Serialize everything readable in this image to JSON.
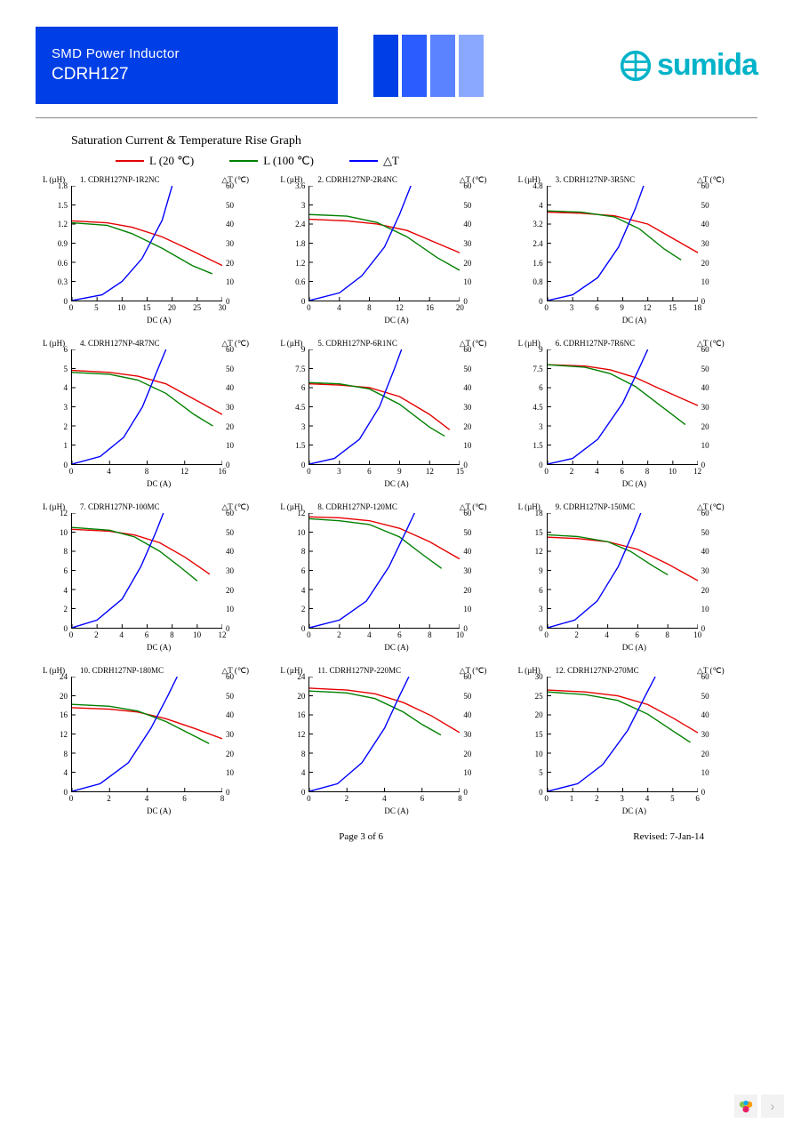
{
  "header": {
    "line1": "SMD Power Inductor",
    "line2": "CDRH127",
    "bar_colors": [
      "#003ee6",
      "#2a5cff",
      "#5b82ff",
      "#8aa8ff"
    ],
    "logo_text": "sumida",
    "logo_color": "#00b3c8"
  },
  "section_title": "Saturation Current & Temperature Rise  Graph",
  "legend": [
    {
      "color": "#e60000",
      "label": "L (20  ℃)"
    },
    {
      "color": "#008000",
      "label": "L (100  ℃)"
    },
    {
      "color": "#0000ff",
      "label": "△T"
    }
  ],
  "axes": {
    "y_left_label": "L (µH)",
    "y_right_label": "△T (℃)",
    "x_label": "DC (A)",
    "dt_ticks": [
      0,
      10,
      20,
      30,
      40,
      50,
      60
    ]
  },
  "colors": {
    "l20": "#e60000",
    "l100": "#008000",
    "dt": "#0000ff",
    "axis": "#000000",
    "tick": "#000000"
  },
  "charts": [
    {
      "n": "1",
      "title": "CDRH127NP-1R2NC",
      "l_max": 1.8,
      "l_ticks": [
        0,
        0.3,
        0.6,
        0.9,
        1.2,
        1.5,
        1.8
      ],
      "x_max": 30,
      "x_ticks": [
        0,
        5,
        10,
        15,
        20,
        25,
        30
      ],
      "l20": [
        [
          0,
          1.25
        ],
        [
          7,
          1.22
        ],
        [
          12,
          1.15
        ],
        [
          18,
          1.0
        ],
        [
          24,
          0.78
        ],
        [
          30,
          0.55
        ]
      ],
      "l100": [
        [
          0,
          1.22
        ],
        [
          7,
          1.18
        ],
        [
          12,
          1.05
        ],
        [
          18,
          0.82
        ],
        [
          24,
          0.55
        ],
        [
          28,
          0.42
        ]
      ],
      "dt": [
        [
          0,
          0
        ],
        [
          6,
          3
        ],
        [
          10,
          10
        ],
        [
          14,
          22
        ],
        [
          18,
          42
        ],
        [
          20,
          60
        ]
      ]
    },
    {
      "n": "2",
      "title": "CDRH127NP-2R4NC",
      "l_max": 3.6,
      "l_ticks": [
        0,
        0.6,
        1.2,
        1.8,
        2.4,
        3.0,
        3.6
      ],
      "x_max": 20,
      "x_ticks": [
        0,
        4,
        8,
        12,
        16,
        20
      ],
      "l20": [
        [
          0,
          2.55
        ],
        [
          5,
          2.5
        ],
        [
          9,
          2.4
        ],
        [
          13,
          2.2
        ],
        [
          17,
          1.8
        ],
        [
          20,
          1.5
        ]
      ],
      "l100": [
        [
          0,
          2.7
        ],
        [
          5,
          2.65
        ],
        [
          9,
          2.45
        ],
        [
          13,
          2.0
        ],
        [
          17,
          1.35
        ],
        [
          20,
          0.95
        ]
      ],
      "dt": [
        [
          0,
          0
        ],
        [
          4,
          4
        ],
        [
          7,
          13
        ],
        [
          10,
          28
        ],
        [
          12,
          45
        ],
        [
          13.5,
          60
        ]
      ]
    },
    {
      "n": "3",
      "title": "CDRH127NP-3R5NC",
      "l_max": 4.8,
      "l_ticks": [
        0,
        0.8,
        1.6,
        2.4,
        3.2,
        4.0,
        4.8
      ],
      "x_max": 18,
      "x_ticks": [
        0,
        3,
        6,
        9,
        12,
        15,
        18
      ],
      "l20": [
        [
          0,
          3.7
        ],
        [
          4,
          3.65
        ],
        [
          8,
          3.55
        ],
        [
          12,
          3.2
        ],
        [
          15,
          2.6
        ],
        [
          18,
          2.0
        ]
      ],
      "l100": [
        [
          0,
          3.75
        ],
        [
          4,
          3.7
        ],
        [
          8,
          3.5
        ],
        [
          11,
          3.0
        ],
        [
          14,
          2.15
        ],
        [
          16,
          1.7
        ]
      ],
      "dt": [
        [
          0,
          0
        ],
        [
          3,
          3
        ],
        [
          6,
          12
        ],
        [
          8.5,
          28
        ],
        [
          10.5,
          48
        ],
        [
          11.5,
          60
        ]
      ]
    },
    {
      "n": "4",
      "title": "CDRH127NP-4R7NC",
      "l_max": 6,
      "l_ticks": [
        0,
        1,
        2,
        3,
        4,
        5,
        6
      ],
      "x_max": 16,
      "x_ticks": [
        0,
        4,
        8,
        12,
        16
      ],
      "l20": [
        [
          0,
          4.9
        ],
        [
          4,
          4.8
        ],
        [
          7,
          4.6
        ],
        [
          10,
          4.2
        ],
        [
          13,
          3.4
        ],
        [
          16,
          2.6
        ]
      ],
      "l100": [
        [
          0,
          4.8
        ],
        [
          4,
          4.7
        ],
        [
          7,
          4.4
        ],
        [
          10,
          3.7
        ],
        [
          13,
          2.6
        ],
        [
          15,
          2.0
        ]
      ],
      "dt": [
        [
          0,
          0
        ],
        [
          3,
          4
        ],
        [
          5.5,
          14
        ],
        [
          7.5,
          30
        ],
        [
          9,
          48
        ],
        [
          10,
          60
        ]
      ]
    },
    {
      "n": "5",
      "title": "CDRH127NP-6R1NC",
      "l_max": 9.0,
      "l_ticks": [
        0,
        1.5,
        3.0,
        4.5,
        6.0,
        7.5,
        9.0
      ],
      "x_max": 15,
      "x_ticks": [
        0,
        3,
        6,
        9,
        12,
        15
      ],
      "l20": [
        [
          0,
          6.3
        ],
        [
          3,
          6.2
        ],
        [
          6,
          6.0
        ],
        [
          9,
          5.3
        ],
        [
          12,
          3.9
        ],
        [
          14,
          2.7
        ]
      ],
      "l100": [
        [
          0,
          6.4
        ],
        [
          3,
          6.3
        ],
        [
          6,
          5.9
        ],
        [
          9,
          4.7
        ],
        [
          12,
          2.9
        ],
        [
          13.5,
          2.2
        ]
      ],
      "dt": [
        [
          0,
          0
        ],
        [
          2.5,
          3
        ],
        [
          5,
          13
        ],
        [
          7,
          30
        ],
        [
          8.5,
          50
        ],
        [
          9.2,
          60
        ]
      ]
    },
    {
      "n": "6",
      "title": "CDRH127NP-7R6NC",
      "l_max": 9.0,
      "l_ticks": [
        0,
        1.5,
        3.0,
        4.5,
        6.0,
        7.5,
        9.0
      ],
      "x_max": 12,
      "x_ticks": [
        0,
        2,
        4,
        6,
        8,
        10,
        12
      ],
      "l20": [
        [
          0,
          7.8
        ],
        [
          3,
          7.7
        ],
        [
          5,
          7.4
        ],
        [
          7,
          6.8
        ],
        [
          9,
          5.9
        ],
        [
          12,
          4.6
        ]
      ],
      "l100": [
        [
          0,
          7.8
        ],
        [
          3,
          7.6
        ],
        [
          5,
          7.1
        ],
        [
          7,
          6.1
        ],
        [
          9,
          4.6
        ],
        [
          11,
          3.1
        ]
      ],
      "dt": [
        [
          0,
          0
        ],
        [
          2,
          3
        ],
        [
          4,
          13
        ],
        [
          6,
          32
        ],
        [
          7.3,
          50
        ],
        [
          8,
          60
        ]
      ]
    },
    {
      "n": "7",
      "title": "CDRH127NP-100MC",
      "l_max": 12,
      "l_ticks": [
        0,
        2,
        4,
        6,
        8,
        10,
        12
      ],
      "x_max": 12,
      "x_ticks": [
        0,
        2,
        4,
        6,
        8,
        10,
        12
      ],
      "l20": [
        [
          0,
          10.3
        ],
        [
          3,
          10.1
        ],
        [
          5,
          9.7
        ],
        [
          7,
          8.9
        ],
        [
          9,
          7.4
        ],
        [
          11,
          5.6
        ]
      ],
      "l100": [
        [
          0,
          10.5
        ],
        [
          3,
          10.2
        ],
        [
          5,
          9.5
        ],
        [
          7,
          8.0
        ],
        [
          8.5,
          6.5
        ],
        [
          10,
          4.9
        ]
      ],
      "dt": [
        [
          0,
          0
        ],
        [
          2,
          4
        ],
        [
          4,
          15
        ],
        [
          5.5,
          32
        ],
        [
          6.7,
          50
        ],
        [
          7.3,
          60
        ]
      ]
    },
    {
      "n": "8",
      "title": "CDRH127NP-120MC",
      "l_max": 12,
      "l_ticks": [
        0,
        2,
        4,
        6,
        8,
        10,
        12
      ],
      "x_max": 10,
      "x_ticks": [
        0,
        2,
        4,
        6,
        8,
        10
      ],
      "l20": [
        [
          0,
          11.6
        ],
        [
          2,
          11.5
        ],
        [
          4,
          11.2
        ],
        [
          6,
          10.4
        ],
        [
          8,
          9.0
        ],
        [
          10,
          7.2
        ]
      ],
      "l100": [
        [
          0,
          11.4
        ],
        [
          2,
          11.2
        ],
        [
          4,
          10.8
        ],
        [
          6,
          9.5
        ],
        [
          7.5,
          7.7
        ],
        [
          8.8,
          6.2
        ]
      ],
      "dt": [
        [
          0,
          0
        ],
        [
          2,
          4
        ],
        [
          3.8,
          14
        ],
        [
          5.3,
          32
        ],
        [
          6.4,
          50
        ],
        [
          7,
          60
        ]
      ]
    },
    {
      "n": "9",
      "title": "CDRH127NP-150MC",
      "l_max": 18,
      "l_ticks": [
        0,
        3,
        6,
        9,
        12,
        15,
        18
      ],
      "x_max": 10,
      "x_ticks": [
        0,
        2,
        4,
        6,
        8,
        10
      ],
      "l20": [
        [
          0,
          14.2
        ],
        [
          2,
          14.0
        ],
        [
          4,
          13.5
        ],
        [
          6,
          12.3
        ],
        [
          8,
          10.0
        ],
        [
          10,
          7.4
        ]
      ],
      "l100": [
        [
          0,
          14.6
        ],
        [
          2,
          14.3
        ],
        [
          4,
          13.5
        ],
        [
          5.5,
          12.0
        ],
        [
          7,
          9.7
        ],
        [
          8,
          8.3
        ]
      ],
      "dt": [
        [
          0,
          0
        ],
        [
          1.8,
          4
        ],
        [
          3.3,
          14
        ],
        [
          4.7,
          32
        ],
        [
          5.7,
          50
        ],
        [
          6.2,
          60
        ]
      ]
    },
    {
      "n": "10",
      "title": "CDRH127NP-180MC",
      "l_max": 24,
      "l_ticks": [
        0,
        4,
        8,
        12,
        16,
        20,
        24
      ],
      "x_max": 8,
      "x_ticks": [
        0,
        2,
        4,
        6,
        8
      ],
      "l20": [
        [
          0,
          17.5
        ],
        [
          2,
          17.2
        ],
        [
          3.5,
          16.6
        ],
        [
          5,
          15.2
        ],
        [
          6.5,
          13.2
        ],
        [
          8,
          11.0
        ]
      ],
      "l100": [
        [
          0,
          18.2
        ],
        [
          2,
          17.8
        ],
        [
          3.5,
          16.8
        ],
        [
          5,
          14.6
        ],
        [
          6.3,
          12.0
        ],
        [
          7.3,
          10.0
        ]
      ],
      "dt": [
        [
          0,
          0
        ],
        [
          1.5,
          4
        ],
        [
          3,
          15
        ],
        [
          4.2,
          33
        ],
        [
          5.1,
          50
        ],
        [
          5.6,
          60
        ]
      ]
    },
    {
      "n": "11",
      "title": "CDRH127NP-220MC",
      "l_max": 24,
      "l_ticks": [
        0,
        4,
        8,
        12,
        16,
        20,
        24
      ],
      "x_max": 8,
      "x_ticks": [
        0,
        2,
        4,
        6,
        8
      ],
      "l20": [
        [
          0,
          21.6
        ],
        [
          2,
          21.2
        ],
        [
          3.5,
          20.4
        ],
        [
          5,
          18.6
        ],
        [
          6.5,
          15.8
        ],
        [
          8,
          12.3
        ]
      ],
      "l100": [
        [
          0,
          21.0
        ],
        [
          2,
          20.6
        ],
        [
          3.5,
          19.4
        ],
        [
          5,
          16.6
        ],
        [
          6,
          14.0
        ],
        [
          7,
          11.8
        ]
      ],
      "dt": [
        [
          0,
          0
        ],
        [
          1.5,
          4
        ],
        [
          2.8,
          15
        ],
        [
          4,
          33
        ],
        [
          4.8,
          50
        ],
        [
          5.3,
          60
        ]
      ]
    },
    {
      "n": "12",
      "title": "CDRH127NP-270MC",
      "l_max": 30,
      "l_ticks": [
        0,
        5,
        10,
        15,
        20,
        25,
        30
      ],
      "x_max": 6,
      "x_ticks": [
        0,
        1,
        2,
        3,
        4,
        5,
        6
      ],
      "l20": [
        [
          0,
          26.5
        ],
        [
          1.5,
          26.0
        ],
        [
          2.8,
          25.0
        ],
        [
          4,
          22.7
        ],
        [
          5,
          19.2
        ],
        [
          6,
          15.3
        ]
      ],
      "l100": [
        [
          0,
          26.0
        ],
        [
          1.5,
          25.3
        ],
        [
          2.8,
          23.8
        ],
        [
          4,
          20.2
        ],
        [
          5,
          15.8
        ],
        [
          5.7,
          12.8
        ]
      ],
      "dt": [
        [
          0,
          0
        ],
        [
          1.2,
          4
        ],
        [
          2.2,
          14
        ],
        [
          3.2,
          32
        ],
        [
          3.9,
          50
        ],
        [
          4.3,
          60
        ]
      ]
    }
  ],
  "footer": {
    "page": "Page 3 of 6",
    "revised": "Revised: 7-Jan-14"
  }
}
